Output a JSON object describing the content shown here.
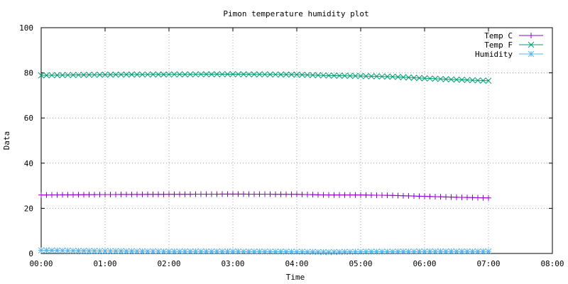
{
  "chart_data": {
    "type": "line",
    "title": "Pimon temperature   humidity plot",
    "xlabel": "Time",
    "ylabel": "Data",
    "xlim": [
      "00:00",
      "08:00"
    ],
    "ylim": [
      0,
      100
    ],
    "x_ticks": [
      "00:00",
      "01:00",
      "02:00",
      "03:00",
      "04:00",
      "05:00",
      "06:00",
      "07:00",
      "08:00"
    ],
    "y_ticks": [
      "0",
      "20",
      "40",
      "60",
      "80",
      "100"
    ],
    "grid": true,
    "legend_position": "top-right",
    "x_start": "00:00",
    "x_end": "07:00",
    "series": [
      {
        "name": "Temp C",
        "color": "#9400d3",
        "marker": "plus",
        "keyframes": [
          {
            "x": "00:00",
            "y": 25.9
          },
          {
            "x": "01:00",
            "y": 26.1
          },
          {
            "x": "02:00",
            "y": 26.2
          },
          {
            "x": "03:00",
            "y": 26.3
          },
          {
            "x": "04:00",
            "y": 26.2
          },
          {
            "x": "04:30",
            "y": 25.9
          },
          {
            "x": "05:00",
            "y": 25.9
          },
          {
            "x": "05:30",
            "y": 25.7
          },
          {
            "x": "06:00",
            "y": 25.3
          },
          {
            "x": "06:30",
            "y": 24.9
          },
          {
            "x": "07:00",
            "y": 24.6
          }
        ]
      },
      {
        "name": "Temp F",
        "color": "#009e73",
        "marker": "cross",
        "keyframes": [
          {
            "x": "00:00",
            "y": 78.9
          },
          {
            "x": "01:00",
            "y": 79.2
          },
          {
            "x": "02:00",
            "y": 79.3
          },
          {
            "x": "03:00",
            "y": 79.4
          },
          {
            "x": "04:00",
            "y": 79.2
          },
          {
            "x": "04:30",
            "y": 78.8
          },
          {
            "x": "05:00",
            "y": 78.6
          },
          {
            "x": "05:30",
            "y": 78.3
          },
          {
            "x": "06:00",
            "y": 77.6
          },
          {
            "x": "06:30",
            "y": 77.0
          },
          {
            "x": "07:00",
            "y": 76.5
          }
        ]
      },
      {
        "name": "Humidity",
        "color": "#56b4e9",
        "marker": "star",
        "keyframes": [
          {
            "x": "00:00",
            "y": 1.4
          },
          {
            "x": "00:30",
            "y": 1.2
          },
          {
            "x": "01:00",
            "y": 1.1
          },
          {
            "x": "02:00",
            "y": 0.9
          },
          {
            "x": "03:00",
            "y": 0.9
          },
          {
            "x": "04:00",
            "y": 0.8
          },
          {
            "x": "04:30",
            "y": 0.6
          },
          {
            "x": "05:00",
            "y": 0.8
          },
          {
            "x": "06:00",
            "y": 0.9
          },
          {
            "x": "07:00",
            "y": 0.9
          }
        ]
      }
    ]
  }
}
